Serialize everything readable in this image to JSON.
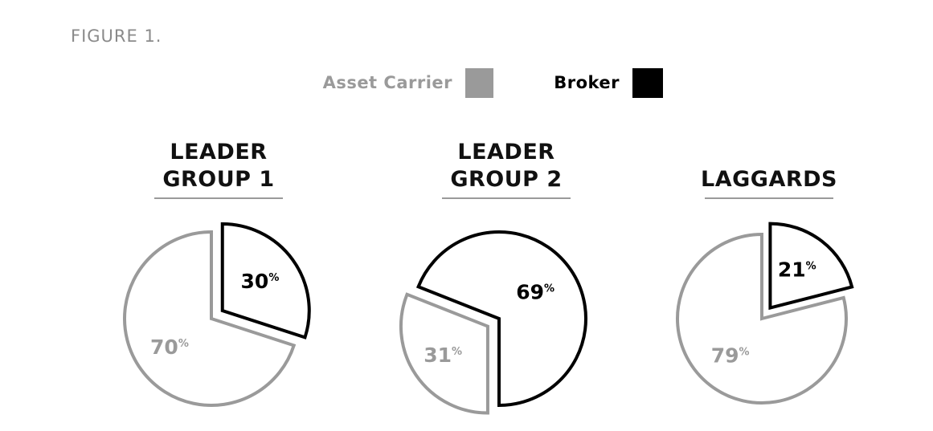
{
  "caption": "FIGURE 1.",
  "chart_data": {
    "type": "pie",
    "legend": [
      {
        "label": "Asset Carrier",
        "color": "#9a9a9a"
      },
      {
        "label": "Broker",
        "color": "#000000"
      }
    ],
    "legend_position": "top-center",
    "charts": [
      {
        "title": [
          "LEADER",
          "GROUP 1"
        ],
        "slices": [
          {
            "series": "Asset Carrier",
            "value": 70,
            "label": "70",
            "suffix": "%"
          },
          {
            "series": "Broker",
            "value": 30,
            "label": "30",
            "suffix": "%"
          }
        ]
      },
      {
        "title": [
          "LEADER",
          "GROUP 2"
        ],
        "slices": [
          {
            "series": "Asset Carrier",
            "value": 31,
            "label": "31",
            "suffix": "%"
          },
          {
            "series": "Broker",
            "value": 69,
            "label": "69",
            "suffix": "%"
          }
        ]
      },
      {
        "title": [
          "LAGGARDS"
        ],
        "slices": [
          {
            "series": "Asset Carrier",
            "value": 79,
            "label": "79",
            "suffix": "%"
          },
          {
            "series": "Broker",
            "value": 21,
            "label": "21",
            "suffix": "%"
          }
        ]
      }
    ]
  }
}
